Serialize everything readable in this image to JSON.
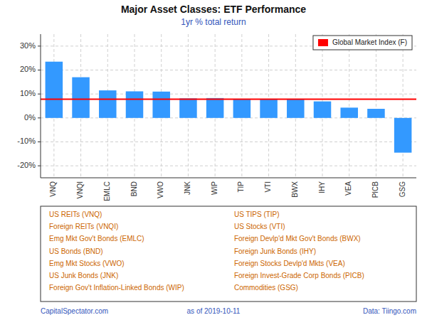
{
  "chart_data": {
    "type": "bar",
    "title": "Major Asset Classes: ETF Performance",
    "subtitle": "1yr % total return",
    "categories": [
      "VNQ",
      "VNQI",
      "EMLC",
      "BND",
      "VWO",
      "JNK",
      "WIP",
      "TIP",
      "VTI",
      "BWX",
      "IHY",
      "VEA",
      "PICB",
      "GSG"
    ],
    "values": [
      23.5,
      17.0,
      11.5,
      11.1,
      11.0,
      8.2,
      8.3,
      7.8,
      7.8,
      7.8,
      6.9,
      4.3,
      3.8,
      -14.5
    ],
    "color": "#3399FF",
    "ylim": [
      -25,
      35
    ],
    "yticks": [
      {
        "value": -20,
        "label": "-20%"
      },
      {
        "value": -10,
        "label": "-10%"
      },
      {
        "value": 0,
        "label": "0%"
      },
      {
        "value": 10,
        "label": "10%"
      },
      {
        "value": 20,
        "label": "20%"
      },
      {
        "value": 30,
        "label": "30%"
      }
    ],
    "grid": true,
    "legend": "upper right",
    "reference_line": {
      "value": 7.8,
      "name": "Global Market Index (F)",
      "color": "#FF0000"
    },
    "key_left": [
      "US REITs (VNQ)",
      "Foreign REITs (VNQI)",
      "Emg Mkt Gov't Bonds (EMLC)",
      "US Bonds (BND)",
      "Emg Mkt Stocks (VWO)",
      "US Junk Bonds (JNK)",
      "Foreign Gov't Inflation-Linked Bonds (WIP)"
    ],
    "key_right": [
      "US TIPS (TIP)",
      "US Stocks (VTI)",
      "Foreign Devlp'd Mkt Gov't Bonds (BWX)",
      "Foreign Junk Bonds (IHY)",
      "Foreign Stocks Devlp'd Mkts (VEA)",
      "Foreign Invest-Grade Corp Bonds (PICB)",
      "Commodities (GSG)"
    ],
    "footer": [
      "CapitalSpectator.com",
      "as of  2019-10-11",
      "Data: Tiingo.com"
    ]
  }
}
